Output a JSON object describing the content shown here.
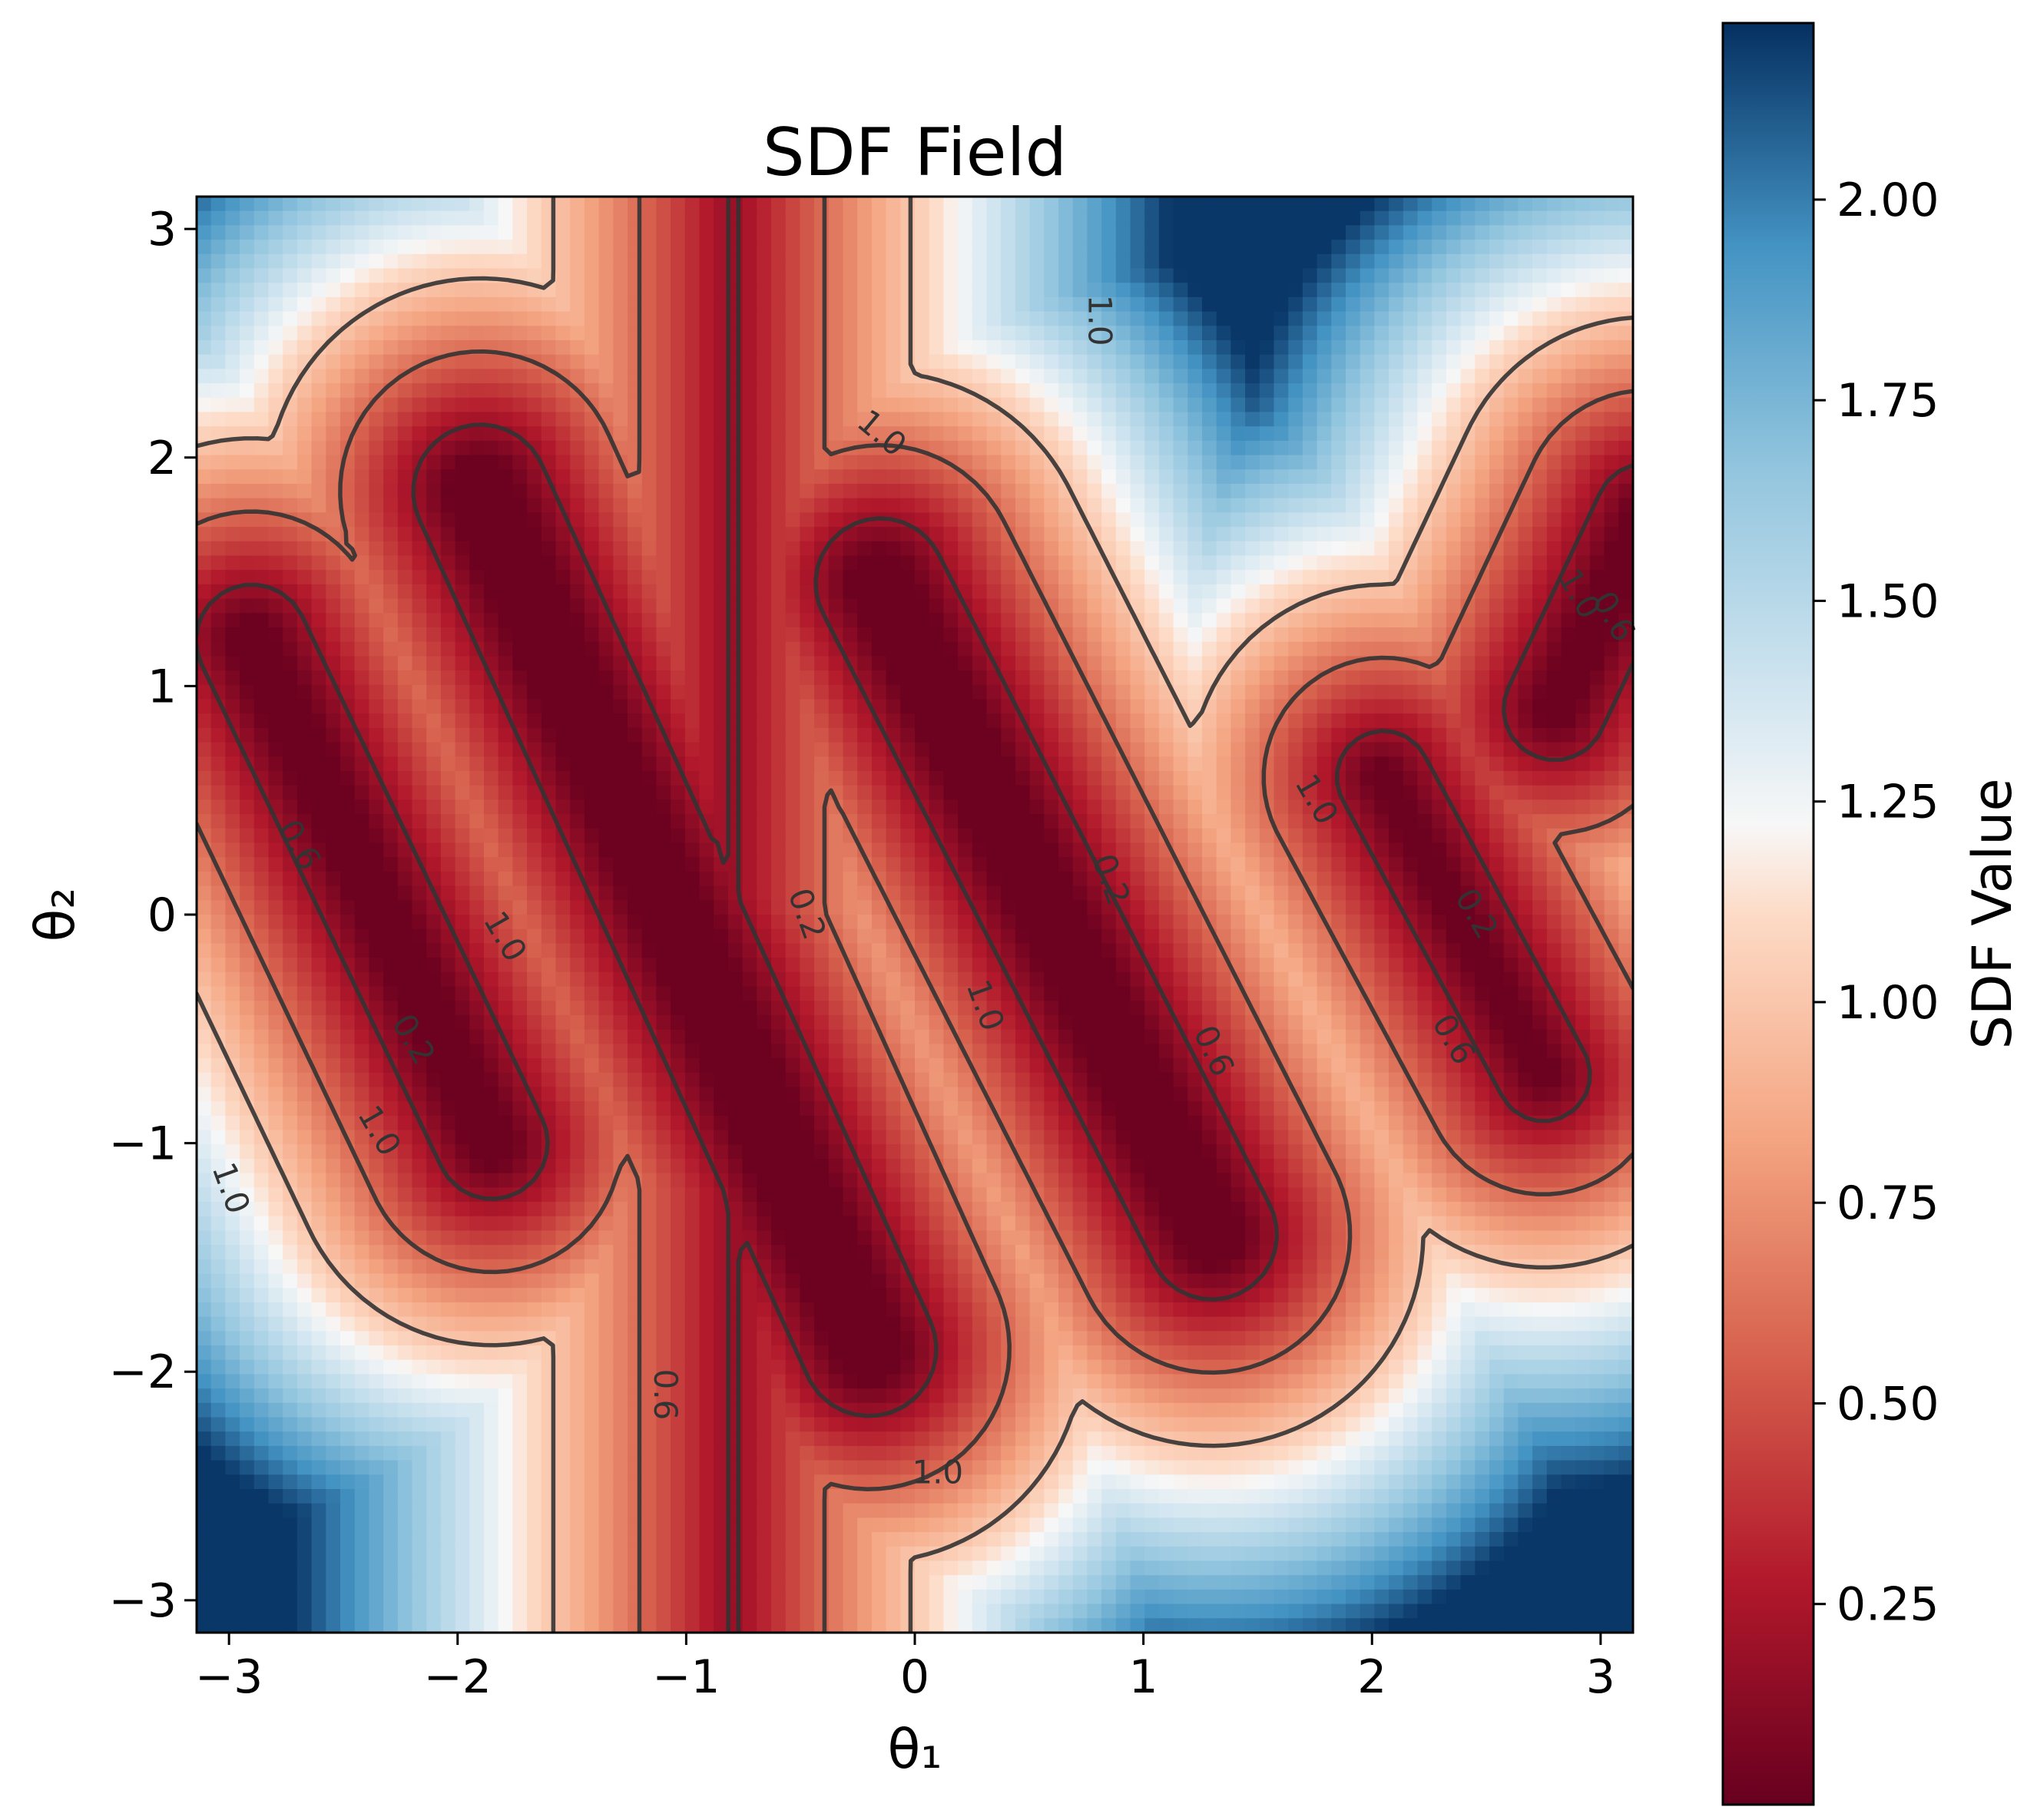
{
  "chart_data": {
    "type": "heatmap",
    "title": "SDF Field",
    "xlabel": "θ₁",
    "ylabel": "θ₂",
    "xlim": [
      -3.1416,
      3.1416
    ],
    "ylim": [
      -3.1416,
      3.1416
    ],
    "x_ticks": [
      {
        "value": -3,
        "label": "−3"
      },
      {
        "value": -2,
        "label": "−2"
      },
      {
        "value": -1,
        "label": "−1"
      },
      {
        "value": 0,
        "label": "0"
      },
      {
        "value": 1,
        "label": "1"
      },
      {
        "value": 2,
        "label": "2"
      },
      {
        "value": 3,
        "label": "3"
      }
    ],
    "y_ticks": [
      {
        "value": -3,
        "label": "−3"
      },
      {
        "value": -2,
        "label": "−2"
      },
      {
        "value": -1,
        "label": "−1"
      },
      {
        "value": 0,
        "label": "0"
      },
      {
        "value": 1,
        "label": "1"
      },
      {
        "value": 2,
        "label": "2"
      },
      {
        "value": 3,
        "label": "3"
      }
    ],
    "colormap": "RdBu",
    "colorbar": {
      "label": "SDF Value",
      "range": [
        0.0,
        2.22
      ],
      "ticks": [
        {
          "value": 0.25,
          "label": "0.25"
        },
        {
          "value": 0.5,
          "label": "0.50"
        },
        {
          "value": 0.75,
          "label": "0.75"
        },
        {
          "value": 1.0,
          "label": "1.00"
        },
        {
          "value": 1.25,
          "label": "1.25"
        },
        {
          "value": 1.5,
          "label": "1.50"
        },
        {
          "value": 1.75,
          "label": "1.75"
        },
        {
          "value": 2.0,
          "label": "2.00"
        }
      ]
    },
    "contour_levels": [
      0.2,
      0.6,
      1.0
    ],
    "contour_labels": [
      {
        "text": "1.0",
        "x": 0.8,
        "y": 2.6,
        "rot": 90
      },
      {
        "text": "1.0",
        "x": -0.15,
        "y": 2.1,
        "rot": 40
      },
      {
        "text": "1.0",
        "x": 2.9,
        "y": 1.4,
        "rot": 60
      },
      {
        "text": "0.6",
        "x": 3.05,
        "y": 1.3,
        "rot": 60
      },
      {
        "text": "0.6",
        "x": -2.7,
        "y": 0.3,
        "rot": 60
      },
      {
        "text": "1.0",
        "x": -1.8,
        "y": -0.1,
        "rot": 60
      },
      {
        "text": "0.2",
        "x": -2.2,
        "y": -0.55,
        "rot": 60
      },
      {
        "text": "1.0",
        "x": -2.35,
        "y": -0.95,
        "rot": 60
      },
      {
        "text": "1.0",
        "x": -3.0,
        "y": -1.2,
        "rot": 70
      },
      {
        "text": "0.2",
        "x": -0.48,
        "y": 0.0,
        "rot": 70
      },
      {
        "text": "0.6",
        "x": -1.1,
        "y": -2.1,
        "rot": 90
      },
      {
        "text": "1.0",
        "x": 0.3,
        "y": -0.4,
        "rot": 70
      },
      {
        "text": "0.2",
        "x": 0.85,
        "y": 0.15,
        "rot": 70
      },
      {
        "text": "0.6",
        "x": 1.3,
        "y": -0.6,
        "rot": 65
      },
      {
        "text": "1.0",
        "x": 0.1,
        "y": -2.45,
        "rot": 0
      },
      {
        "text": "1.0",
        "x": 1.75,
        "y": 0.5,
        "rot": 60
      },
      {
        "text": "0.2",
        "x": 2.45,
        "y": 0.0,
        "rot": 60
      },
      {
        "text": "0.6",
        "x": 2.35,
        "y": -0.55,
        "rot": 60
      }
    ],
    "grid": false,
    "legend": "none"
  }
}
